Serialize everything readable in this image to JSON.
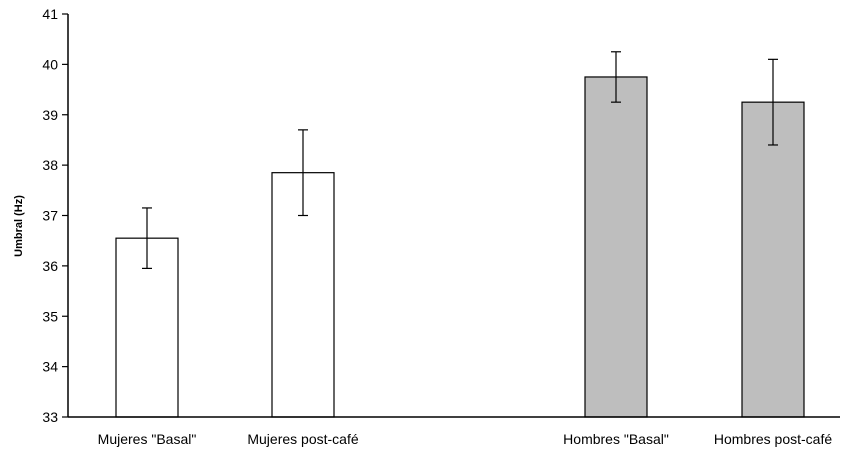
{
  "chart_data": {
    "type": "bar",
    "title": "",
    "xlabel": "",
    "ylabel": "Umbral (Hz)",
    "ylim": [
      33,
      41
    ],
    "yticks": [
      33,
      34,
      35,
      36,
      37,
      38,
      39,
      40,
      41
    ],
    "grid": false,
    "categories": [
      "Mujeres \"Basal\"",
      "Mujeres post-café",
      "Hombres \"Basal\"",
      "Hombres post-café"
    ],
    "values": [
      36.55,
      37.85,
      39.75,
      39.25
    ],
    "error": [
      0.6,
      0.85,
      0.5,
      0.85
    ],
    "bar_colors": [
      "#ffffff",
      "#ffffff",
      "#bebebe",
      "#bebebe"
    ]
  }
}
